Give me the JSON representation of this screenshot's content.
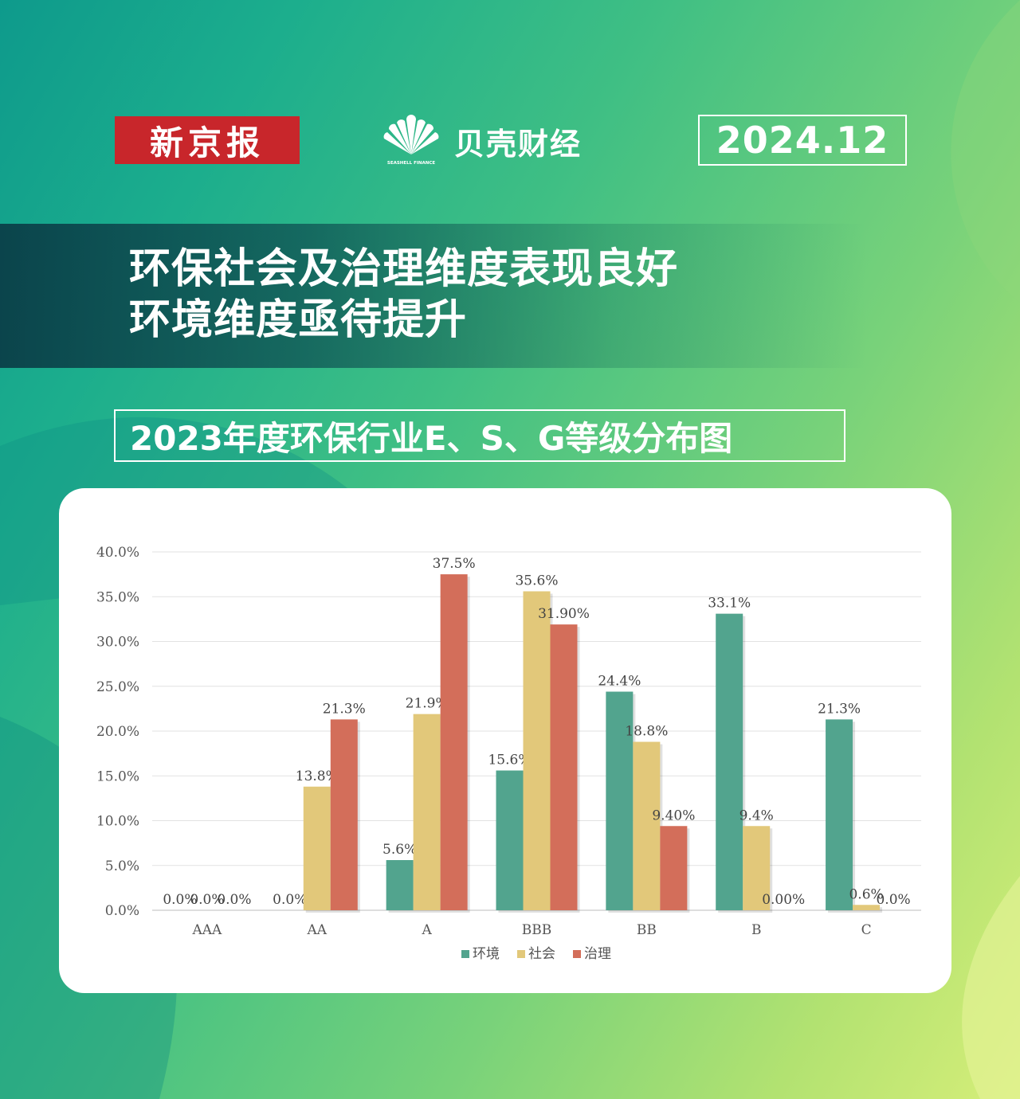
{
  "header": {
    "brand_xjb": "新京报",
    "brand_bk": "贝壳财经",
    "brand_bk_en": "SEASHELL FINANCE",
    "date": "2024.12"
  },
  "headline": {
    "line1": "环保社会及治理维度表现良好",
    "line2": "环境维度亟待提升"
  },
  "subtitle": "2023年度环保行业E、S、G等级分布图",
  "colors": {
    "environment": "#52a48e",
    "social": "#e2c87a",
    "governance": "#d36e5a"
  },
  "chart_data": {
    "type": "bar",
    "categories": [
      "AAA",
      "AA",
      "A",
      "BBB",
      "BB",
      "B",
      "C"
    ],
    "series": [
      {
        "name": "环境",
        "values": [
          0.0,
          0.0,
          5.6,
          15.6,
          24.4,
          33.1,
          21.3
        ],
        "labels": [
          "0.0%",
          "0.0%",
          "5.6%",
          "15.6%",
          "24.4%",
          "33.1%",
          "21.3%"
        ]
      },
      {
        "name": "社会",
        "values": [
          0.0,
          13.8,
          21.9,
          35.6,
          18.8,
          9.4,
          0.6
        ],
        "labels": [
          "0.0%",
          "13.8%",
          "21.9%",
          "35.6%",
          "18.8%",
          "9.4%",
          "0.6%"
        ]
      },
      {
        "name": "治理",
        "values": [
          0.0,
          21.3,
          37.5,
          31.9,
          9.4,
          0.0,
          0.0
        ],
        "labels": [
          "0.0%",
          "21.3%",
          "37.5%",
          "31.90%",
          "9.40%",
          "0.00%",
          "0.0%"
        ]
      }
    ],
    "yticks": [
      "0.0%",
      "5.0%",
      "10.0%",
      "15.0%",
      "20.0%",
      "25.0%",
      "30.0%",
      "35.0%",
      "40.0%"
    ],
    "ylim": [
      0,
      40
    ],
    "grid": true,
    "legend": "bottom-center"
  }
}
